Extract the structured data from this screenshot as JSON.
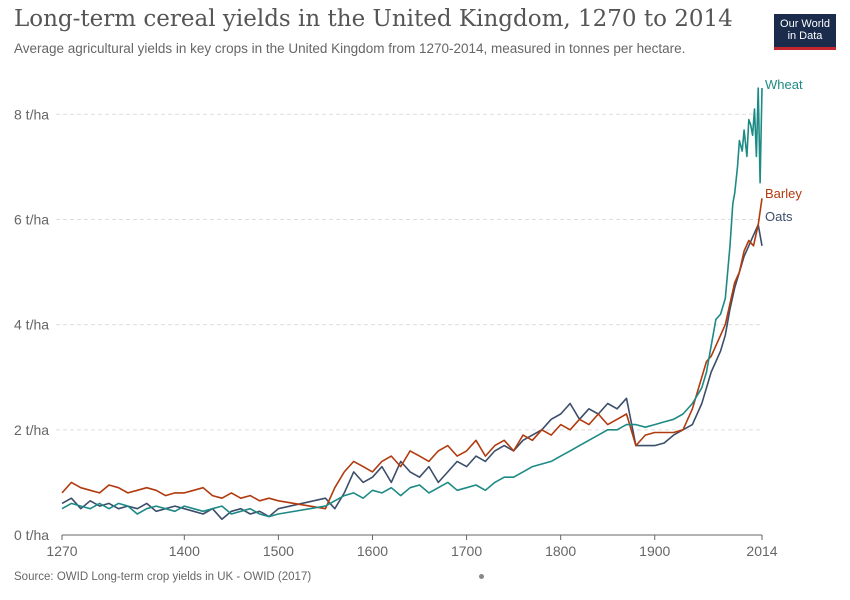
{
  "header": {
    "title": "Long-term cereal yields in the United Kingdom, 1270 to 2014",
    "subtitle": "Average agricultural yields in key crops in the United Kingdom from 1270-2014, measured in tonnes per hectare.",
    "logo_line1": "Our World",
    "logo_line2": "in Data"
  },
  "footer": {
    "source": "Source: OWID Long-term crop yields in UK - OWID (2017)"
  },
  "colors": {
    "wheat": "#1d8a85",
    "barley": "#b13a0e",
    "oats": "#3c4e6a",
    "grid": "#dddddd",
    "axis": "#666666"
  },
  "chart_data": {
    "type": "line",
    "title": "Long-term cereal yields in the United Kingdom, 1270 to 2014",
    "xlabel": "",
    "ylabel": "tonnes per hectare",
    "xlim": [
      1270,
      2014
    ],
    "ylim": [
      0,
      8.5
    ],
    "x_ticks": [
      1270,
      1400,
      1500,
      1600,
      1700,
      1800,
      1900,
      2014
    ],
    "x_tick_labels": [
      "1270",
      "1400",
      "1500",
      "1600",
      "1700",
      "1800",
      "1900",
      "2014"
    ],
    "y_ticks": [
      0,
      2,
      4,
      6,
      8
    ],
    "y_tick_labels": [
      "0 t/ha",
      "2 t/ha",
      "4 t/ha",
      "6 t/ha",
      "8 t/ha"
    ],
    "grid": "horizontal dashed",
    "series": [
      {
        "name": "Wheat",
        "color": "#1d8a85",
        "x": [
          1270,
          1280,
          1290,
          1300,
          1310,
          1320,
          1330,
          1340,
          1350,
          1360,
          1370,
          1380,
          1390,
          1400,
          1410,
          1420,
          1430,
          1440,
          1450,
          1460,
          1470,
          1480,
          1490,
          1500,
          1550,
          1560,
          1570,
          1580,
          1590,
          1600,
          1610,
          1620,
          1630,
          1640,
          1650,
          1660,
          1670,
          1680,
          1690,
          1700,
          1710,
          1720,
          1730,
          1740,
          1750,
          1760,
          1770,
          1780,
          1790,
          1800,
          1810,
          1820,
          1830,
          1840,
          1850,
          1860,
          1870,
          1880,
          1890,
          1900,
          1910,
          1920,
          1930,
          1940,
          1950,
          1955,
          1960,
          1965,
          1970,
          1975,
          1980,
          1983,
          1985,
          1988,
          1990,
          1993,
          1995,
          1998,
          2000,
          2002,
          2004,
          2006,
          2008,
          2010,
          2012,
          2014
        ],
        "values": [
          0.5,
          0.6,
          0.55,
          0.5,
          0.6,
          0.5,
          0.6,
          0.55,
          0.4,
          0.5,
          0.55,
          0.5,
          0.45,
          0.55,
          0.5,
          0.45,
          0.5,
          0.55,
          0.4,
          0.45,
          0.5,
          0.4,
          0.35,
          0.4,
          0.55,
          0.65,
          0.75,
          0.8,
          0.7,
          0.85,
          0.8,
          0.9,
          0.75,
          0.9,
          0.95,
          0.8,
          0.9,
          1.0,
          0.85,
          0.9,
          0.95,
          0.85,
          1.0,
          1.1,
          1.1,
          1.2,
          1.3,
          1.35,
          1.4,
          1.5,
          1.6,
          1.7,
          1.8,
          1.9,
          2.0,
          2.0,
          2.1,
          2.1,
          2.05,
          2.1,
          2.15,
          2.2,
          2.3,
          2.5,
          2.8,
          3.1,
          3.6,
          4.1,
          4.2,
          4.5,
          5.5,
          6.3,
          6.5,
          7.0,
          7.5,
          7.3,
          7.7,
          7.2,
          7.9,
          7.8,
          7.6,
          8.1,
          7.2,
          8.5,
          6.7,
          8.5
        ]
      },
      {
        "name": "Barley",
        "color": "#b13a0e",
        "x": [
          1270,
          1280,
          1290,
          1300,
          1310,
          1320,
          1330,
          1340,
          1350,
          1360,
          1370,
          1380,
          1390,
          1400,
          1410,
          1420,
          1430,
          1440,
          1450,
          1460,
          1470,
          1480,
          1490,
          1500,
          1550,
          1560,
          1570,
          1580,
          1590,
          1600,
          1610,
          1620,
          1630,
          1640,
          1650,
          1660,
          1670,
          1680,
          1690,
          1700,
          1710,
          1720,
          1730,
          1740,
          1750,
          1760,
          1770,
          1780,
          1790,
          1800,
          1810,
          1820,
          1830,
          1840,
          1850,
          1860,
          1870,
          1880,
          1890,
          1900,
          1910,
          1920,
          1930,
          1940,
          1950,
          1955,
          1960,
          1965,
          1970,
          1975,
          1980,
          1985,
          1990,
          1995,
          2000,
          2005,
          2010,
          2014
        ],
        "values": [
          0.8,
          1.0,
          0.9,
          0.85,
          0.8,
          0.95,
          0.9,
          0.8,
          0.85,
          0.9,
          0.85,
          0.75,
          0.8,
          0.8,
          0.85,
          0.9,
          0.75,
          0.7,
          0.8,
          0.7,
          0.75,
          0.65,
          0.7,
          0.65,
          0.5,
          0.9,
          1.2,
          1.4,
          1.3,
          1.2,
          1.4,
          1.5,
          1.3,
          1.6,
          1.5,
          1.4,
          1.6,
          1.7,
          1.5,
          1.6,
          1.8,
          1.5,
          1.7,
          1.8,
          1.6,
          1.9,
          1.8,
          2.0,
          1.9,
          2.1,
          2.0,
          2.2,
          2.1,
          2.3,
          2.1,
          2.2,
          2.3,
          1.7,
          1.9,
          1.95,
          1.95,
          1.95,
          2.0,
          2.4,
          3.0,
          3.3,
          3.4,
          3.6,
          3.8,
          4.0,
          4.4,
          4.8,
          5.0,
          5.4,
          5.6,
          5.5,
          5.9,
          6.4
        ]
      },
      {
        "name": "Oats",
        "color": "#3c4e6a",
        "x": [
          1270,
          1280,
          1290,
          1300,
          1310,
          1320,
          1330,
          1340,
          1350,
          1360,
          1370,
          1380,
          1390,
          1400,
          1410,
          1420,
          1430,
          1440,
          1450,
          1460,
          1470,
          1480,
          1490,
          1500,
          1550,
          1560,
          1570,
          1580,
          1590,
          1600,
          1610,
          1620,
          1630,
          1640,
          1650,
          1660,
          1670,
          1680,
          1690,
          1700,
          1710,
          1720,
          1730,
          1740,
          1750,
          1760,
          1770,
          1780,
          1790,
          1800,
          1810,
          1820,
          1830,
          1840,
          1850,
          1860,
          1870,
          1880,
          1890,
          1900,
          1910,
          1920,
          1930,
          1940,
          1950,
          1955,
          1960,
          1965,
          1970,
          1975,
          1980,
          1985,
          1990,
          1995,
          2000,
          2005,
          2010,
          2014
        ],
        "values": [
          0.6,
          0.7,
          0.5,
          0.65,
          0.55,
          0.6,
          0.5,
          0.55,
          0.5,
          0.6,
          0.45,
          0.5,
          0.55,
          0.5,
          0.45,
          0.4,
          0.5,
          0.3,
          0.45,
          0.5,
          0.4,
          0.45,
          0.35,
          0.5,
          0.7,
          0.5,
          0.8,
          1.2,
          1.0,
          1.1,
          1.3,
          1.0,
          1.4,
          1.2,
          1.1,
          1.3,
          1.0,
          1.2,
          1.4,
          1.3,
          1.5,
          1.4,
          1.6,
          1.7,
          1.6,
          1.8,
          1.9,
          2.0,
          2.2,
          2.3,
          2.5,
          2.2,
          2.4,
          2.3,
          2.5,
          2.4,
          2.6,
          1.7,
          1.7,
          1.7,
          1.75,
          1.9,
          2.0,
          2.1,
          2.5,
          2.8,
          3.1,
          3.3,
          3.5,
          3.8,
          4.3,
          4.7,
          5.0,
          5.3,
          5.5,
          5.7,
          5.9,
          5.5
        ]
      }
    ],
    "legend": "right-end inline labels"
  }
}
